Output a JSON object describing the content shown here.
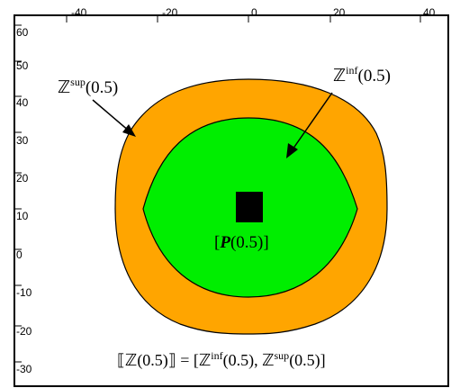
{
  "x_axis": {
    "tick_labels": [
      "-40",
      "-20",
      "0",
      "20",
      "40"
    ]
  },
  "y_axis": {
    "tick_labels": [
      "60",
      "50",
      "40",
      "30",
      "20",
      "10",
      "0",
      "-10",
      "-20",
      "-30"
    ]
  },
  "labels": {
    "z_sup_base": "ℤ",
    "z_sup_super": "sup",
    "z_sup_arg": "(0.5)",
    "z_inf_base": "ℤ",
    "z_inf_super": "inf",
    "z_inf_arg": "(0.5)",
    "p_open": "[",
    "p_symbol": "P",
    "p_arg": "(0.5)]",
    "formula_lhs": "⟦ℤ(0.5)⟧ = [ℤ",
    "formula_inf_super": "inf",
    "formula_mid": "(0.5), ℤ",
    "formula_sup_super": "sup",
    "formula_end": "(0.5)]"
  },
  "colors": {
    "outer_region": "#ffa500",
    "inner_region": "#00ee00",
    "point_marker": "#000000",
    "border": "#000000"
  }
}
